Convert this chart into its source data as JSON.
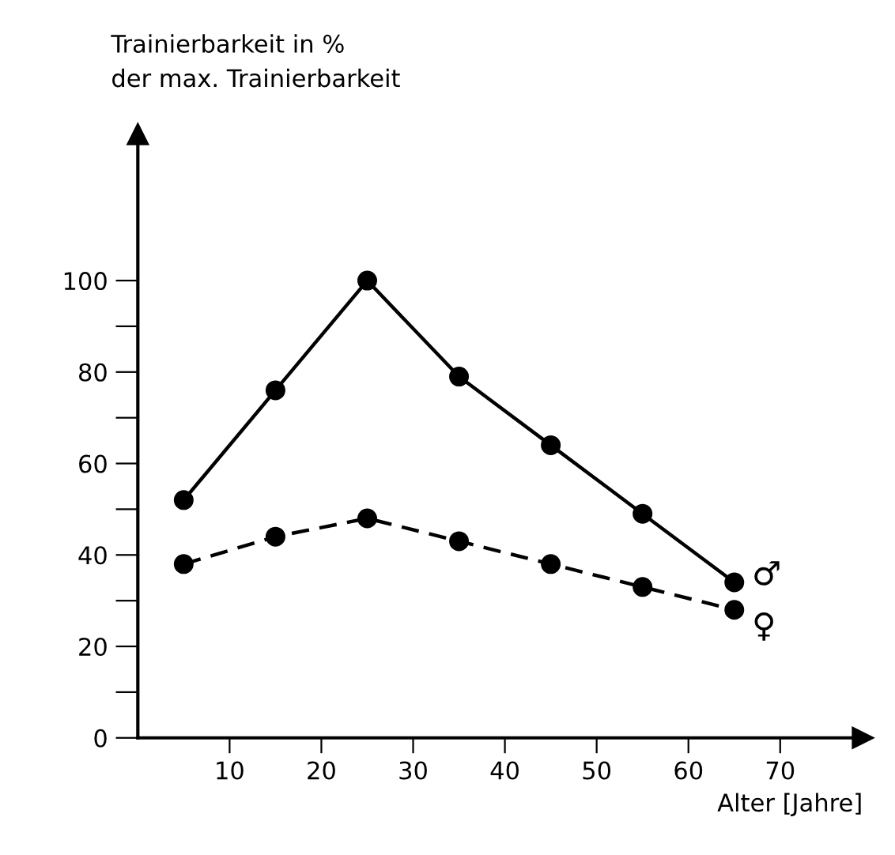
{
  "chart_data": {
    "type": "line",
    "ylabel": "Trainierbarkeit in %\nder max. Trainierbarkeit",
    "xlabel": "Alter [Jahre]",
    "x": [
      5,
      15,
      25,
      35,
      45,
      55,
      65
    ],
    "series": [
      {
        "name": "♂",
        "color": "#000000",
        "line_style": "solid",
        "values": [
          52,
          76,
          100,
          79,
          64,
          49,
          34
        ]
      },
      {
        "name": "♀",
        "color": "#000000",
        "line_style": "dashed",
        "values": [
          38,
          44,
          48,
          43,
          38,
          33,
          28
        ]
      }
    ],
    "xlim": [
      0,
      79
    ],
    "ylim": [
      0,
      132
    ],
    "xticks": [
      10,
      20,
      30,
      40,
      50,
      60,
      70
    ],
    "yticks": [
      0,
      {
        "value": 10,
        "label": null
      },
      20,
      {
        "value": 30,
        "label": null
      },
      40,
      {
        "value": 50,
        "label": null
      },
      60,
      {
        "value": 70,
        "label": null
      },
      80,
      {
        "value": 90,
        "label": null
      },
      100
    ],
    "marker": "circle",
    "grid": false,
    "legend": false
  }
}
